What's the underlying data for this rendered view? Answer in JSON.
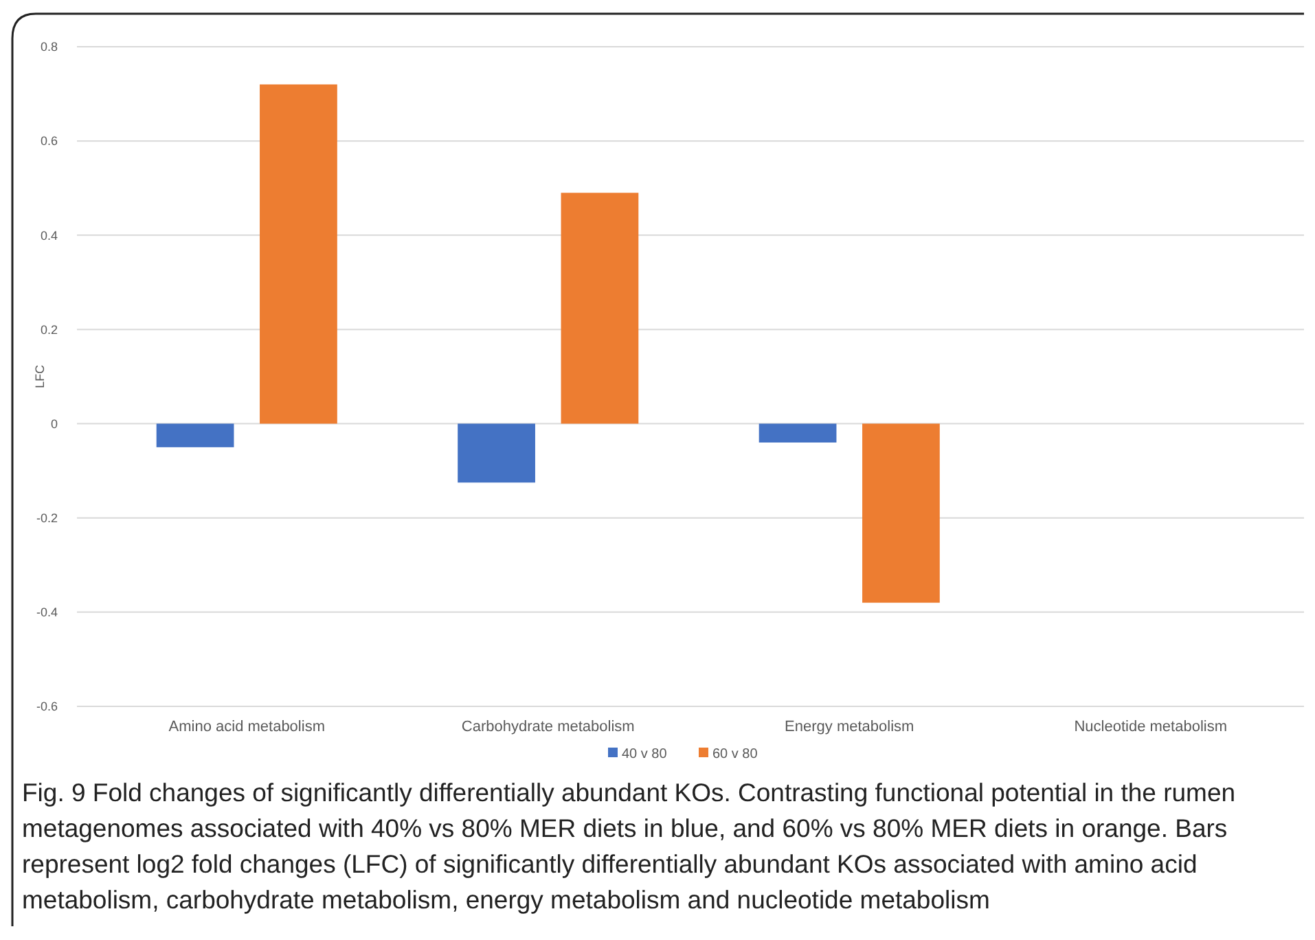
{
  "chart_data": {
    "type": "bar",
    "ylabel": "LFC",
    "categories": [
      "Amino acid metabolism",
      "Carbohydrate metabolism",
      "Energy metabolism",
      "Nucleotide metabolism"
    ],
    "series": [
      {
        "name": "40 v 80",
        "color": "#4472c4",
        "values": [
          -0.05,
          -0.125,
          -0.04,
          null
        ]
      },
      {
        "name": "60 v 80",
        "color": "#ed7d31",
        "values": [
          0.72,
          0.49,
          -0.38,
          null
        ]
      }
    ],
    "ylim": [
      -0.6,
      0.8
    ],
    "yticks": [
      -0.6,
      -0.4,
      -0.2,
      0,
      0.2,
      0.4,
      0.6,
      0.8
    ],
    "grid": "y",
    "legend": "bottom",
    "annotations": [
      "Fig. 9 Fold changes of significantly differentially abundant KOs. Contrasting functional potential in the rumen metagenomes associated with 40% vs 80% MER diets in blue, and 60% vs 80% MER diets in orange. Bars represent log2 fold changes (LFC) of significantly differentially abundant KOs associated with amino acid metabolism, carbohydrate metabolism, energy metabolism and nucleotide metabolism"
    ]
  }
}
